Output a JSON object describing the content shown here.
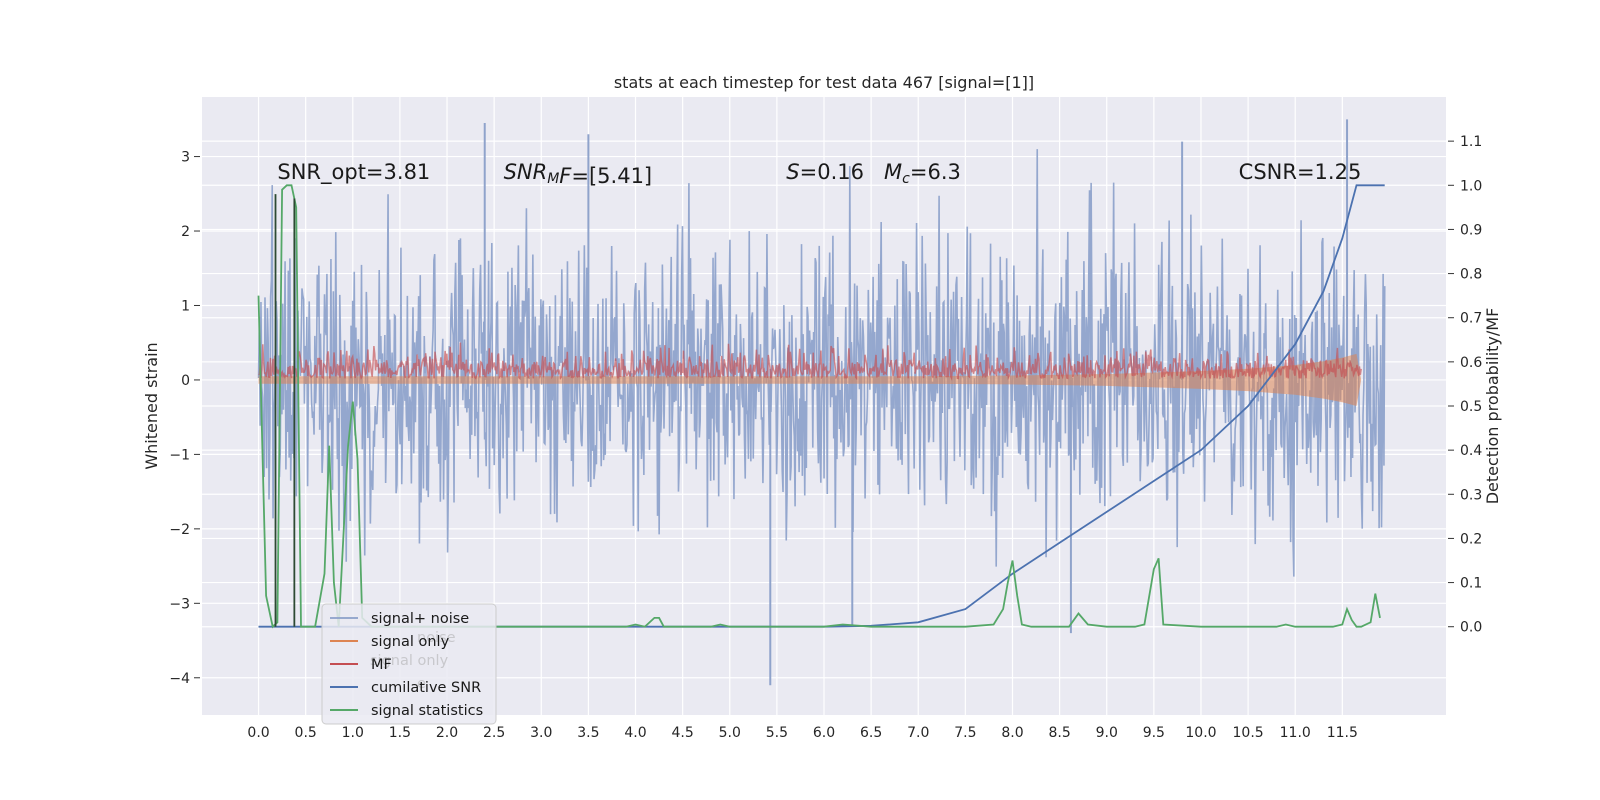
{
  "chart_data": {
    "type": "line",
    "title": "stats at each timestep for test data 467 [signal=[1]]",
    "xlabel": "",
    "ylabel": "Whitened strain",
    "y2label": "Detection probability/MF",
    "xlim": [
      -0.6,
      12.6
    ],
    "ylim": [
      -4.5,
      3.8
    ],
    "y2lim": [
      -0.2,
      1.2
    ],
    "grid": true,
    "legend_position": "lower-left",
    "x_ticks": [
      0.0,
      0.5,
      1.0,
      1.5,
      2.0,
      2.5,
      3.0,
      3.5,
      4.0,
      4.5,
      5.0,
      5.5,
      6.0,
      6.5,
      7.0,
      7.5,
      8.0,
      8.5,
      9.0,
      9.5,
      10.0,
      10.5,
      11.0,
      11.5
    ],
    "x_tick_labels": [
      "0.0",
      "0.5",
      "1.0",
      "1.5",
      "2.0",
      "2.5",
      "3.0",
      "3.5",
      "4.0",
      "4.5",
      "5.0",
      "5.5",
      "6.0",
      "6.5",
      "7.0",
      "7.5",
      "8.0",
      "8.5",
      "9.0",
      "9.5",
      "10.0",
      "10.5",
      "11.0",
      "11.5"
    ],
    "y_ticks": [
      3,
      2,
      1,
      0,
      -1,
      -2,
      -3,
      -4
    ],
    "y_tick_labels": [
      "3",
      "2",
      "1",
      "0",
      "−1",
      "−2",
      "−3",
      "−4"
    ],
    "y2_ticks": [
      1.1,
      1.0,
      0.9,
      0.8,
      0.7,
      0.6,
      0.5,
      0.4,
      0.3,
      0.2,
      0.1,
      0.0
    ],
    "y2_tick_labels": [
      "1.1",
      "1.0",
      "0.9",
      "0.8",
      "0.7",
      "0.6",
      "0.5",
      "0.4",
      "0.3",
      "0.2",
      "0.1",
      "0.0"
    ],
    "annotations": [
      {
        "text": "SNR_opt=3.81",
        "x": 0.2,
        "y": 2.7
      },
      {
        "text_parts": [
          "SNR",
          "M",
          "F=[5.41]"
        ],
        "x": 2.6,
        "y": 2.7
      },
      {
        "text_parts": [
          "S",
          "=0.16   ",
          "M",
          "c",
          "=6.3"
        ],
        "x": 5.6,
        "y": 2.7
      },
      {
        "text": "CSNR=1.25",
        "x": 10.4,
        "y": 2.7
      }
    ],
    "series": [
      {
        "name": "signal+ noise",
        "axis": "left",
        "color": "#8fa3cb",
        "description_values": {
          "x_range": [
            0.0,
            11.95
          ],
          "typical_range": [
            -1.8,
            1.8
          ],
          "max": 3.5,
          "min": -4.1
        }
      },
      {
        "name": "signal only",
        "axis": "left",
        "color": "#dd8452",
        "x": [
          0.0,
          7.0,
          8.0,
          9.0,
          10.0,
          10.5,
          11.0,
          11.3,
          11.5,
          11.65,
          11.7
        ],
        "upper": [
          0.05,
          0.05,
          0.06,
          0.08,
          0.12,
          0.15,
          0.2,
          0.25,
          0.3,
          0.35,
          0.0
        ],
        "lower": [
          -0.05,
          -0.05,
          -0.06,
          -0.08,
          -0.12,
          -0.15,
          -0.2,
          -0.25,
          -0.3,
          -0.35,
          0.0
        ]
      },
      {
        "name": "MF",
        "axis": "left",
        "color": "#c44e52",
        "description_values": {
          "x_range": [
            0.0,
            11.7
          ],
          "typical_range": [
            0.0,
            0.4
          ],
          "max": 0.85
        }
      },
      {
        "name": "cumilative SNR",
        "axis": "right",
        "color": "#4c72b0",
        "x": [
          0.0,
          6.0,
          6.5,
          7.0,
          7.5,
          8.0,
          8.5,
          9.0,
          9.5,
          10.0,
          10.5,
          11.0,
          11.3,
          11.5,
          11.6,
          11.65,
          11.95
        ],
        "y": [
          0.0,
          0.0,
          0.002,
          0.01,
          0.04,
          0.12,
          0.19,
          0.26,
          0.33,
          0.4,
          0.5,
          0.64,
          0.76,
          0.88,
          0.96,
          1.0,
          1.0
        ]
      },
      {
        "name": "signal statistics",
        "axis": "right",
        "color": "#55a868",
        "x": [
          0.0,
          0.08,
          0.15,
          0.2,
          0.25,
          0.3,
          0.35,
          0.4,
          0.45,
          0.5,
          0.6,
          0.7,
          0.75,
          0.8,
          0.85,
          0.95,
          1.0,
          1.05,
          1.1,
          1.2,
          1.5,
          2.0,
          3.0,
          3.5,
          3.9,
          4.0,
          4.1,
          4.2,
          4.25,
          4.3,
          4.5,
          4.8,
          4.9,
          5.0,
          6.0,
          6.2,
          6.5,
          7.0,
          7.5,
          7.8,
          7.9,
          7.95,
          8.0,
          8.05,
          8.1,
          8.2,
          8.5,
          8.6,
          8.7,
          8.8,
          9.0,
          9.3,
          9.4,
          9.5,
          9.55,
          9.6,
          10.0,
          10.5,
          10.8,
          10.9,
          11.0,
          11.4,
          11.5,
          11.55,
          11.6,
          11.65,
          11.7,
          11.8,
          11.85,
          11.9
        ],
        "y": [
          0.75,
          0.07,
          0.0,
          0.01,
          0.99,
          1.0,
          1.0,
          0.95,
          0.0,
          0.0,
          0.0,
          0.12,
          0.41,
          0.1,
          0.0,
          0.41,
          0.51,
          0.38,
          0.02,
          0.0,
          0.0,
          0.0,
          0.0,
          0.0,
          0.0,
          0.005,
          0.0,
          0.02,
          0.02,
          0.0,
          0.0,
          0.0,
          0.005,
          0.0,
          0.0,
          0.005,
          0.0,
          0.0,
          0.0,
          0.005,
          0.04,
          0.1,
          0.15,
          0.07,
          0.005,
          0.0,
          0.0,
          0.0,
          0.03,
          0.005,
          0.0,
          0.0,
          0.005,
          0.13,
          0.155,
          0.005,
          0.0,
          0.0,
          0.0,
          0.005,
          0.0,
          0.0,
          0.005,
          0.04,
          0.015,
          0.0,
          0.0,
          0.01,
          0.075,
          0.02
        ]
      }
    ]
  }
}
